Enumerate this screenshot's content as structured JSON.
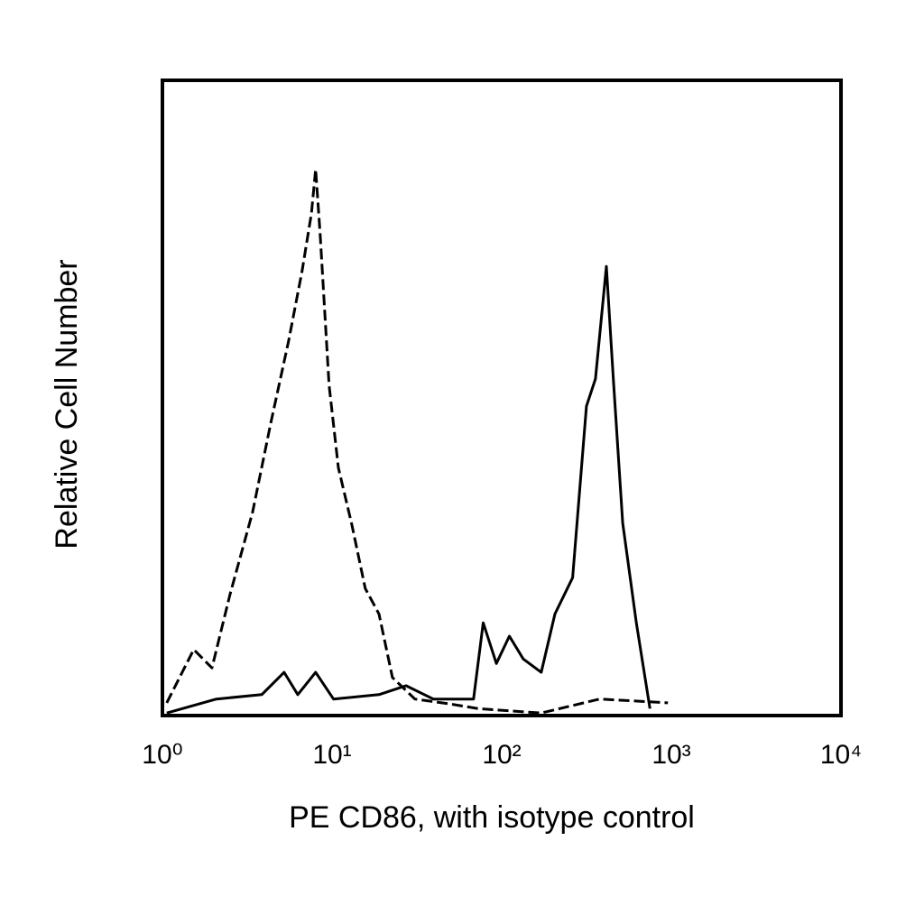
{
  "chart_data": {
    "type": "line",
    "xlabel": "PE CD86, with isotype control",
    "ylabel": "Relative Cell Number",
    "x_log": true,
    "xlim": [
      1,
      10000
    ],
    "xticks": [
      {
        "value": 1,
        "label": "10⁰"
      },
      {
        "value": 10,
        "label": "10¹"
      },
      {
        "value": 100,
        "label": "10²"
      },
      {
        "value": 1000,
        "label": "10³"
      },
      {
        "value": 10000,
        "label": "10⁴"
      }
    ],
    "ylim": [
      0,
      100
    ],
    "series": [
      {
        "color": "#000000",
        "line_style": "dashed",
        "x": [
          1.06,
          1.53,
          1.96,
          2.5,
          3.4,
          4.35,
          5.55,
          6.66,
          7.55,
          8.0,
          8.5,
          9.6,
          10.9,
          13.1,
          15.7,
          18.9,
          22.7,
          30.8,
          50.2,
          72.6,
          171,
          378,
          954
        ],
        "values": [
          2,
          10.4,
          7.5,
          19,
          32,
          46,
          59,
          70,
          79,
          86,
          76,
          52,
          39,
          30,
          20,
          16,
          6,
          2.6,
          1.8,
          1.1,
          0.4,
          2.6,
          2
        ]
      },
      {
        "color": "#000000",
        "line_style": "solid",
        "x": [
          1.06,
          2.08,
          3.85,
          5.22,
          6.28,
          8.0,
          10.2,
          18.9,
          27.3,
          39.5,
          68.2,
          77.8,
          93,
          111,
          134,
          171,
          206,
          262,
          316,
          357,
          414,
          455,
          517,
          622,
          748
        ],
        "values": [
          0.4,
          2.6,
          3.3,
          6.8,
          3.3,
          6.8,
          2.6,
          3.3,
          4.7,
          2.6,
          2.6,
          14.6,
          8.2,
          12.5,
          8.9,
          6.8,
          16,
          21.7,
          48.7,
          53,
          70.7,
          53,
          30.3,
          14.6,
          1.1
        ]
      }
    ]
  }
}
